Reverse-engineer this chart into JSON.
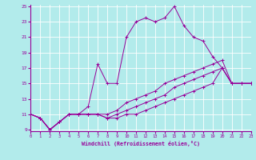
{
  "xlabel": "Windchill (Refroidissement éolien,°C)",
  "bg_color": "#b2ebeb",
  "line_color": "#990099",
  "grid_color": "#ffffff",
  "xmin": 0,
  "xmax": 23,
  "ymin": 9,
  "ymax": 25,
  "yticks": [
    9,
    11,
    13,
    15,
    17,
    19,
    21,
    23,
    25
  ],
  "xticks": [
    0,
    1,
    2,
    3,
    4,
    5,
    6,
    7,
    8,
    9,
    10,
    11,
    12,
    13,
    14,
    15,
    16,
    17,
    18,
    19,
    20,
    21,
    22,
    23
  ],
  "series": [
    [
      0,
      1,
      2,
      3,
      4,
      5,
      6,
      7,
      8,
      9,
      10,
      11,
      12,
      13,
      14,
      15,
      16,
      17,
      18,
      19,
      20,
      21,
      22,
      23
    ],
    [
      11,
      10.5,
      9,
      10,
      11,
      11,
      12,
      17.5,
      15,
      15,
      21,
      23,
      23.5,
      23,
      23.5,
      25,
      22.5,
      21,
      20.5,
      18.5,
      17,
      15,
      15,
      15
    ],
    [
      11,
      10.5,
      9,
      10,
      11,
      11,
      11,
      11,
      10.5,
      10.5,
      11,
      11,
      11.5,
      12,
      12.5,
      13,
      13.5,
      14,
      14.5,
      15,
      17,
      15,
      15,
      15
    ],
    [
      11,
      10.5,
      9,
      10,
      11,
      11,
      11,
      11,
      10.5,
      11,
      11.5,
      12,
      12.5,
      13,
      13.5,
      14.5,
      15,
      15.5,
      16,
      16.5,
      17,
      15,
      15,
      15
    ],
    [
      11,
      10.5,
      9,
      10,
      11,
      11,
      11,
      11,
      11,
      11.5,
      12.5,
      13,
      13.5,
      14,
      15,
      15.5,
      16,
      16.5,
      17,
      17.5,
      18,
      15,
      15,
      15
    ]
  ]
}
